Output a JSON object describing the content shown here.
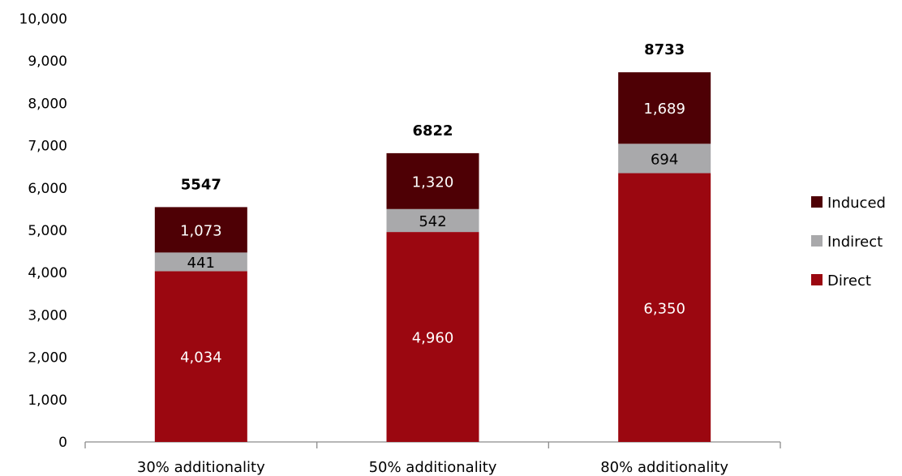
{
  "chart_data": {
    "type": "bar",
    "stacked": true,
    "categories": [
      "30% additionality",
      "50% additionality",
      "80% additionality"
    ],
    "series": [
      {
        "name": "Direct",
        "values": [
          4034,
          4960,
          6350
        ],
        "labels": [
          "4,034",
          "4,960",
          "6,350"
        ],
        "color": "#9b0710",
        "label_color": "#ffffff"
      },
      {
        "name": "Indirect",
        "values": [
          441,
          542,
          694
        ],
        "labels": [
          "441",
          "542",
          "694"
        ],
        "color": "#a9a9ab",
        "label_color": "#000000"
      },
      {
        "name": "Induced",
        "values": [
          1073,
          1320,
          1689
        ],
        "labels": [
          "1,073",
          "1,320",
          "1,689"
        ],
        "color": "#4e0005",
        "label_color": "#ffffff"
      }
    ],
    "totals": [
      "5547",
      "6822",
      "8733"
    ],
    "title": "",
    "xlabel": "",
    "ylabel": "",
    "ylim": [
      0,
      10000
    ],
    "yticks": [
      0,
      1000,
      2000,
      3000,
      4000,
      5000,
      6000,
      7000,
      8000,
      9000,
      10000
    ],
    "ytick_labels": [
      "0",
      "1,000",
      "2,000",
      "3,000",
      "4,000",
      "5,000",
      "6,000",
      "7,000",
      "8,000",
      "9,000",
      "10,000"
    ],
    "grid": false,
    "legend": {
      "placement": "right",
      "order": [
        "Induced",
        "Indirect",
        "Direct"
      ]
    }
  }
}
